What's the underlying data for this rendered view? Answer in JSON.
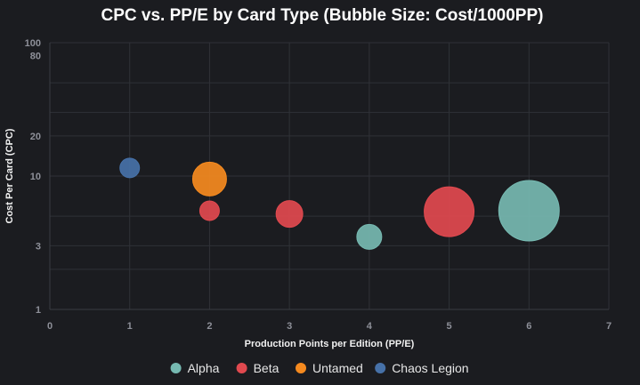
{
  "chart_data": {
    "type": "bubble",
    "title": "CPC vs. PP/E by Card Type (Bubble Size: Cost/1000PP)",
    "xlabel": "Production Points per Edition (PP/E)",
    "ylabel": "Cost Per Card (CPC)",
    "xlim": [
      0,
      7
    ],
    "ylim": [
      1,
      100
    ],
    "y_scale": "log",
    "x_ticks": [
      0,
      1,
      2,
      3,
      4,
      5,
      6,
      7
    ],
    "y_ticks": [
      1,
      3,
      10,
      20,
      80,
      100
    ],
    "grid": true,
    "legend_position": "bottom",
    "series": [
      {
        "name": "Alpha",
        "color": "#76b9b1",
        "points": [
          {
            "x": 4,
            "y": 3.5,
            "r": 14
          },
          {
            "x": 6,
            "y": 5.5,
            "r": 34
          }
        ]
      },
      {
        "name": "Beta",
        "color": "#e1494f",
        "points": [
          {
            "x": 2,
            "y": 5.5,
            "r": 11
          },
          {
            "x": 3,
            "y": 5.2,
            "r": 15
          },
          {
            "x": 5,
            "y": 5.4,
            "r": 28
          }
        ]
      },
      {
        "name": "Untamed",
        "color": "#f58a1f",
        "points": [
          {
            "x": 2,
            "y": 9.5,
            "r": 19
          }
        ]
      },
      {
        "name": "Chaos Legion",
        "color": "#4671a8",
        "points": [
          {
            "x": 1,
            "y": 11.5,
            "r": 11
          }
        ]
      }
    ]
  }
}
